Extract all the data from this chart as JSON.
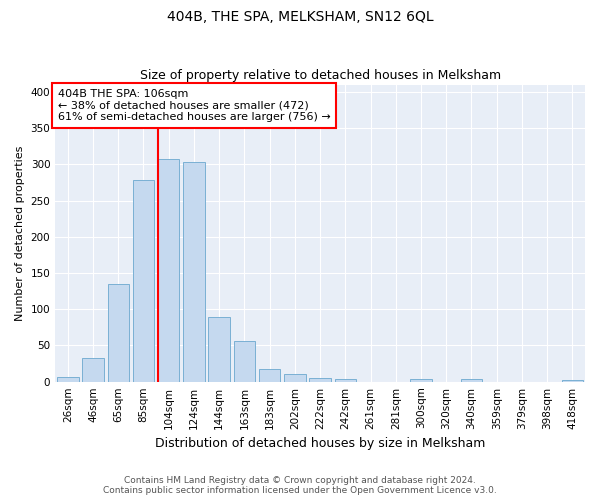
{
  "title": "404B, THE SPA, MELKSHAM, SN12 6QL",
  "subtitle": "Size of property relative to detached houses in Melksham",
  "xlabel": "Distribution of detached houses by size in Melksham",
  "ylabel": "Number of detached properties",
  "footnote1": "Contains HM Land Registry data © Crown copyright and database right 2024.",
  "footnote2": "Contains public sector information licensed under the Open Government Licence v3.0.",
  "bar_labels": [
    "26sqm",
    "46sqm",
    "65sqm",
    "85sqm",
    "104sqm",
    "124sqm",
    "144sqm",
    "163sqm",
    "183sqm",
    "202sqm",
    "222sqm",
    "242sqm",
    "261sqm",
    "281sqm",
    "300sqm",
    "320sqm",
    "340sqm",
    "359sqm",
    "379sqm",
    "398sqm",
    "418sqm"
  ],
  "bar_values": [
    6,
    32,
    135,
    278,
    307,
    303,
    89,
    56,
    18,
    10,
    5,
    4,
    0,
    0,
    4,
    0,
    4,
    0,
    0,
    0,
    3
  ],
  "bar_color": "#c5d9ef",
  "bar_edgecolor": "#7ab0d4",
  "vline_x_bar_index": 4,
  "vline_color": "red",
  "annotation_text": "404B THE SPA: 106sqm\n← 38% of detached houses are smaller (472)\n61% of semi-detached houses are larger (756) →",
  "annotation_box_color": "white",
  "annotation_box_edgecolor": "red",
  "ylim": [
    0,
    410
  ],
  "yticks": [
    0,
    50,
    100,
    150,
    200,
    250,
    300,
    350,
    400
  ],
  "title_fontsize": 10,
  "subtitle_fontsize": 9,
  "xlabel_fontsize": 9,
  "ylabel_fontsize": 8,
  "tick_fontsize": 7.5,
  "annotation_fontsize": 8,
  "footnote_fontsize": 6.5,
  "background_color": "#e8eef7"
}
